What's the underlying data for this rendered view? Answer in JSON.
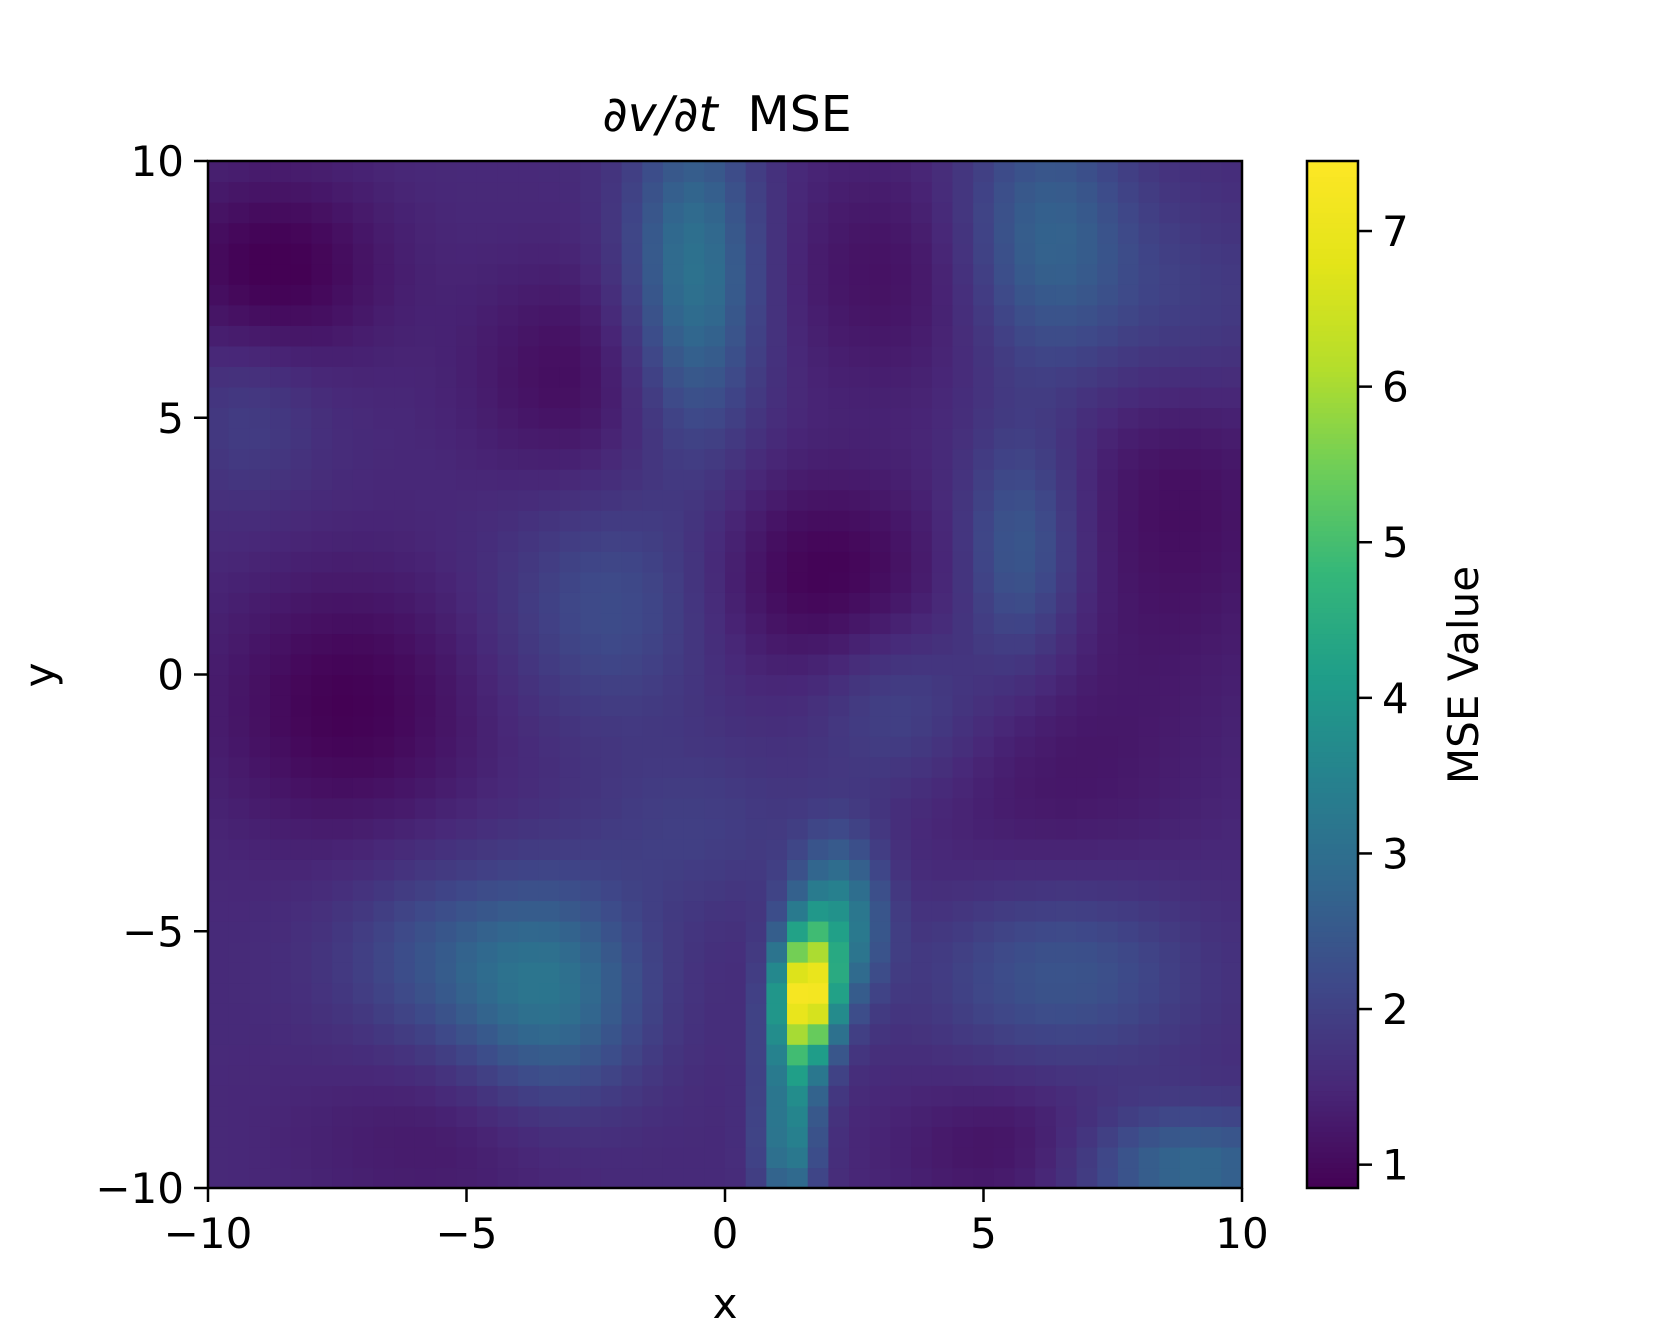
{
  "chart_data": {
    "type": "heatmap",
    "title_prefix": "∂v/∂t",
    "title_suffix": "MSE",
    "xlabel": "x",
    "ylabel": "y",
    "xlim": [
      -10,
      10
    ],
    "ylim": [
      -10,
      10
    ],
    "xticks": [
      -10,
      -5,
      0,
      5,
      10
    ],
    "xtick_labels": [
      "−10",
      "−5",
      "0",
      "5",
      "10"
    ],
    "yticks": [
      -10,
      -5,
      0,
      5,
      10
    ],
    "ytick_labels": [
      "−10",
      "−5",
      "0",
      "5",
      "10"
    ],
    "colormap": "viridis",
    "colorbar": {
      "label": "MSE Value",
      "range": [
        0.85,
        7.45
      ],
      "ticks": [
        1,
        2,
        3,
        4,
        5,
        6,
        7
      ],
      "tick_labels": [
        "1",
        "2",
        "3",
        "4",
        "5",
        "6",
        "7"
      ]
    },
    "grid_resolution": [
      50,
      50
    ],
    "base_level": 1.55,
    "features": [
      {
        "x": -8.7,
        "y": 7.9,
        "amp": -0.75,
        "sx": 1.5,
        "sy": 1.3
      },
      {
        "x": -7.3,
        "y": -0.6,
        "amp": -0.7,
        "sx": 1.8,
        "sy": 1.8
      },
      {
        "x": -3.0,
        "y": 5.8,
        "amp": -0.5,
        "sx": 1.4,
        "sy": 1.5
      },
      {
        "x": 1.9,
        "y": 1.9,
        "amp": -0.7,
        "sx": 1.6,
        "sy": 1.4
      },
      {
        "x": 3.3,
        "y": 7.8,
        "amp": -0.45,
        "sx": 1.6,
        "sy": 1.6
      },
      {
        "x": 8.8,
        "y": 3.5,
        "amp": -0.5,
        "sx": 1.5,
        "sy": 2.5
      },
      {
        "x": 6.3,
        "y": -2.0,
        "amp": -0.35,
        "sx": 2.0,
        "sy": 2.0
      },
      {
        "x": 5.5,
        "y": -9.2,
        "amp": -0.45,
        "sx": 1.5,
        "sy": 1.0
      },
      {
        "x": -5.5,
        "y": -9.0,
        "amp": -0.3,
        "sx": 2.0,
        "sy": 1.2
      },
      {
        "x": -0.6,
        "y": 7.8,
        "amp": 1.6,
        "sx": 0.9,
        "sy": 2.2
      },
      {
        "x": 6.2,
        "y": 8.5,
        "amp": 1.2,
        "sx": 1.2,
        "sy": 1.8
      },
      {
        "x": 9.0,
        "y": 7.0,
        "amp": 0.5,
        "sx": 1.5,
        "sy": 1.5
      },
      {
        "x": 5.7,
        "y": 2.4,
        "amp": 1.0,
        "sx": 0.8,
        "sy": 1.6
      },
      {
        "x": -2.2,
        "y": 1.3,
        "amp": 0.7,
        "sx": 1.5,
        "sy": 1.6
      },
      {
        "x": 3.4,
        "y": -0.6,
        "amp": 0.6,
        "sx": 1.2,
        "sy": 1.2
      },
      {
        "x": -3.3,
        "y": -6.2,
        "amp": 1.4,
        "sx": 1.3,
        "sy": 1.5
      },
      {
        "x": -5.5,
        "y": -5.5,
        "amp": 0.7,
        "sx": 1.5,
        "sy": 1.3
      },
      {
        "x": 6.5,
        "y": -5.8,
        "amp": 0.9,
        "sx": 1.8,
        "sy": 1.3
      },
      {
        "x": 9.0,
        "y": -9.6,
        "amp": 1.3,
        "sx": 1.6,
        "sy": 0.8
      },
      {
        "x": -0.5,
        "y": -3.0,
        "amp": 0.4,
        "sx": 1.5,
        "sy": 1.2
      },
      {
        "x": 1.6,
        "y": -6.2,
        "amp": 5.2,
        "sx": 0.4,
        "sy": 0.85
      },
      {
        "x": 2.2,
        "y": -4.8,
        "amp": 2.0,
        "sx": 0.6,
        "sy": 1.1
      },
      {
        "x": 1.3,
        "y": -7.9,
        "amp": 1.8,
        "sx": 0.4,
        "sy": 1.3
      },
      {
        "x": 1.2,
        "y": -9.5,
        "amp": 0.9,
        "sx": 0.4,
        "sy": 0.8
      },
      {
        "x": -9.2,
        "y": 5.0,
        "amp": 0.4,
        "sx": 1.0,
        "sy": 1.2
      }
    ]
  }
}
